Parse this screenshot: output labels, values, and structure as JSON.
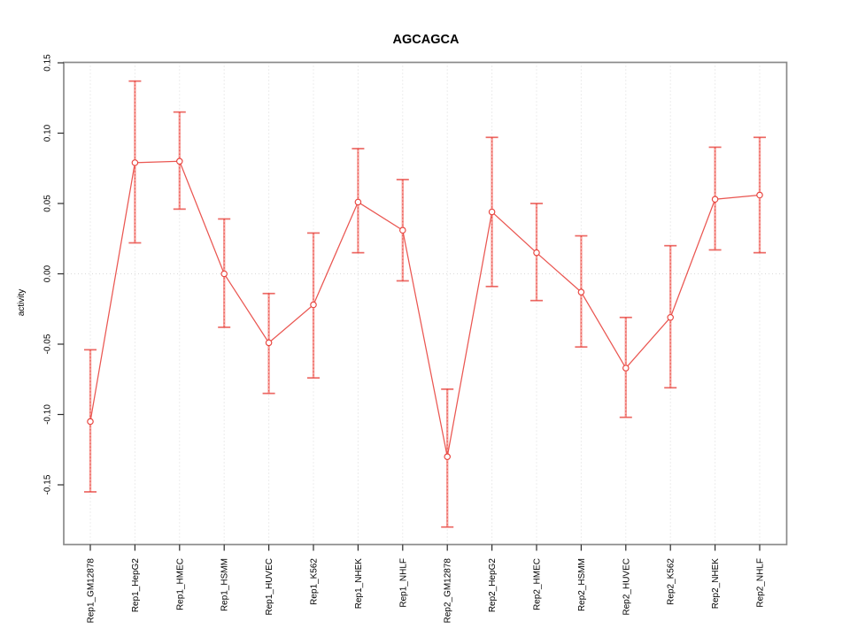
{
  "chart_data": {
    "type": "line",
    "title": "AGCAGCA",
    "xlabel": "",
    "ylabel": "activity",
    "categories": [
      "Rep1_GM12878",
      "Rep1_HepG2",
      "Rep1_HMEC",
      "Rep1_HSMM",
      "Rep1_HUVEC",
      "Rep1_K562",
      "Rep1_NHEK",
      "Rep1_NHLF",
      "Rep2_GM12878",
      "Rep2_HepG2",
      "Rep2_HMEC",
      "Rep2_HSMM",
      "Rep2_HUVEC",
      "Rep2_K562",
      "Rep2_NHEK",
      "Rep2_NHLF"
    ],
    "series": [
      {
        "name": "activity",
        "values": [
          -0.105,
          0.079,
          0.08,
          0.0,
          -0.049,
          -0.022,
          0.051,
          0.031,
          -0.13,
          0.044,
          0.015,
          -0.013,
          -0.067,
          -0.031,
          0.053,
          0.056
        ],
        "ci_low": [
          -0.155,
          0.022,
          0.046,
          -0.038,
          -0.085,
          -0.074,
          0.015,
          -0.005,
          -0.18,
          -0.009,
          -0.019,
          -0.052,
          -0.102,
          -0.081,
          0.017,
          0.015
        ],
        "ci_high": [
          -0.054,
          0.137,
          0.115,
          0.039,
          -0.014,
          0.029,
          0.089,
          0.067,
          -0.082,
          0.097,
          0.05,
          0.027,
          -0.031,
          0.02,
          0.09,
          0.097
        ]
      }
    ],
    "ylim": [
      -0.192,
      0.15
    ],
    "yticks": [
      -0.15,
      -0.1,
      -0.05,
      0.0,
      0.05,
      0.1,
      0.15
    ],
    "ytick_labels": [
      "-0.15",
      "-0.10",
      "-0.05",
      "0.00",
      "0.05",
      "0.10",
      "0.15"
    ],
    "grid": {
      "vertical_gridlines": true,
      "horizontal_zero_line": true
    },
    "legend_position": "none",
    "marker": "open-circle",
    "error_bars": true,
    "colors": {
      "series": "#e8443e",
      "error_bar_fill": "#f6a09b",
      "grid": "#dadada",
      "box": "#8a8a8a",
      "tick": "#2b2b2b",
      "text": "#000000",
      "background": "#ffffff"
    }
  }
}
